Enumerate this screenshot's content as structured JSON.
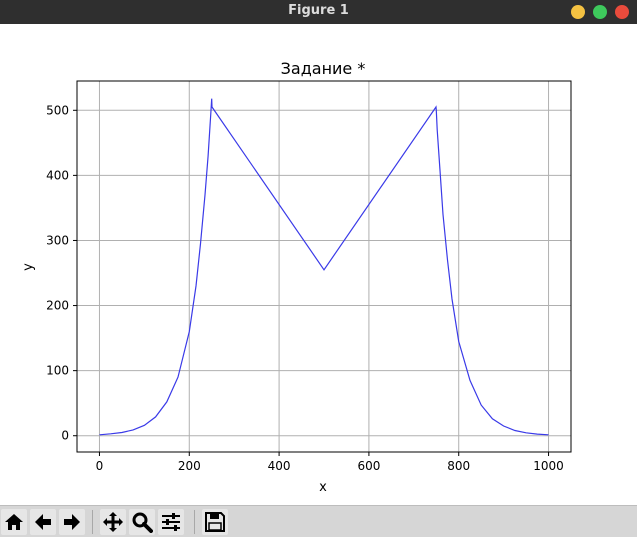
{
  "window": {
    "title": "Figure 1",
    "controls": {
      "minimize_color": "#f5c242",
      "maximize_color": "#3ec95c",
      "close_color": "#e94b3c"
    }
  },
  "toolbar": {
    "buttons": [
      {
        "name": "home",
        "icon": "home-icon"
      },
      {
        "name": "back",
        "icon": "arrow-left-icon"
      },
      {
        "name": "forward",
        "icon": "arrow-right-icon"
      },
      {
        "name": "pan",
        "icon": "move-icon"
      },
      {
        "name": "zoom",
        "icon": "magnifier-icon"
      },
      {
        "name": "configure-subplots",
        "icon": "sliders-icon"
      },
      {
        "name": "save",
        "icon": "floppy-disk-icon"
      }
    ]
  },
  "chart_data": {
    "type": "line",
    "title": "Задание *",
    "xlabel": "x",
    "ylabel": "y",
    "xlim": [
      -50,
      1050
    ],
    "ylim": [
      -25,
      545
    ],
    "xticks": [
      0,
      200,
      400,
      600,
      800,
      1000
    ],
    "yticks": [
      0,
      100,
      200,
      300,
      400,
      500
    ],
    "grid": true,
    "line_color": "#3a3ae8",
    "series": [
      {
        "x": [
          0,
          25,
          50,
          75,
          100,
          125,
          150,
          175,
          200,
          215,
          225,
          235,
          242,
          248,
          250,
          250.5,
          500,
          749.5,
          750,
          752,
          758,
          765,
          775,
          785,
          800,
          825,
          850,
          875,
          900,
          925,
          950,
          975,
          1000
        ],
        "y": [
          1.5,
          3,
          5,
          9,
          16,
          29,
          52,
          90,
          160,
          230,
          295,
          370,
          430,
          495,
          518,
          505,
          255,
          505,
          500,
          470,
          410,
          340,
          270,
          210,
          145,
          85,
          47,
          26,
          15,
          8,
          4.5,
          2.5,
          1.5
        ]
      }
    ]
  }
}
